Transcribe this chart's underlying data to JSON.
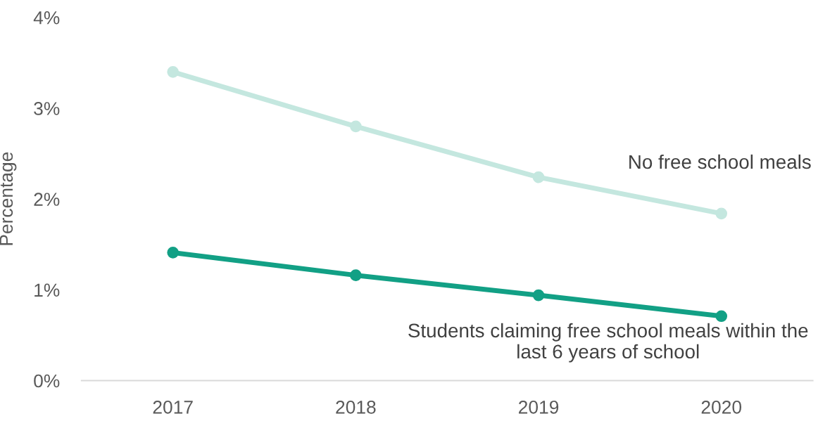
{
  "chart_data": {
    "type": "line",
    "ylabel": "Percentage",
    "categories": [
      "2017",
      "2018",
      "2019",
      "2020"
    ],
    "ylim": [
      0,
      4
    ],
    "yticks": [
      {
        "value": 0,
        "label": "0%"
      },
      {
        "value": 1,
        "label": "1%"
      },
      {
        "value": 2,
        "label": "2%"
      },
      {
        "value": 3,
        "label": "3%"
      },
      {
        "value": 4,
        "label": "4%"
      }
    ],
    "marker": "circle",
    "line_style": "solid",
    "series": [
      {
        "name": "No free school meals",
        "color": "#c4e7df",
        "values": [
          3.4,
          2.8,
          2.24,
          1.84
        ]
      },
      {
        "name": "Students claiming free school meals within the last 6 years of school",
        "color": "#12a085",
        "values": [
          1.41,
          1.16,
          0.94,
          0.71
        ]
      }
    ]
  }
}
